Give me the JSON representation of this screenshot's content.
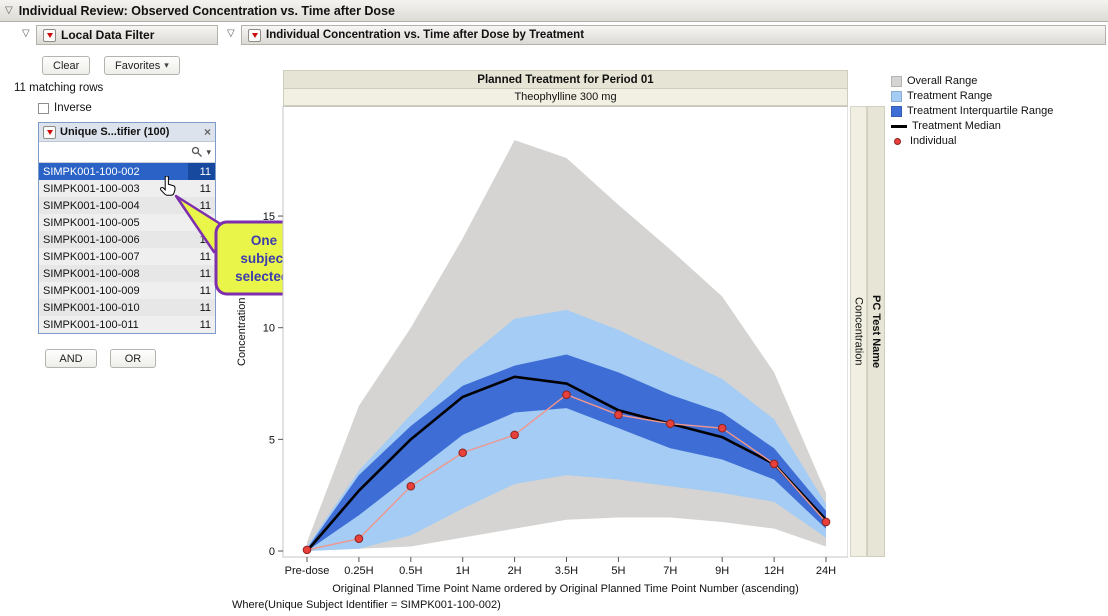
{
  "icons": {
    "disclosure": "▽",
    "caret_down": "▾",
    "close": "×"
  },
  "window": {
    "title": "Individual Review: Observed Concentration vs. Time after Dose"
  },
  "filter_panel": {
    "title": "Local Data Filter",
    "clear_label": "Clear",
    "favorites_label": "Favorites",
    "matching_rows": "11 matching rows",
    "inverse_label": "Inverse",
    "and_label": "AND",
    "or_label": "OR",
    "list": {
      "header": "Unique S...tifier (100)",
      "search_value": "",
      "items": [
        {
          "id": "SIMPK001-100-002",
          "count": "11",
          "selected": true
        },
        {
          "id": "SIMPK001-100-003",
          "count": "11",
          "selected": false
        },
        {
          "id": "SIMPK001-100-004",
          "count": "11",
          "selected": false
        },
        {
          "id": "SIMPK001-100-005",
          "count": "11",
          "selected": false
        },
        {
          "id": "SIMPK001-100-006",
          "count": "11",
          "selected": false
        },
        {
          "id": "SIMPK001-100-007",
          "count": "11",
          "selected": false
        },
        {
          "id": "SIMPK001-100-008",
          "count": "11",
          "selected": false
        },
        {
          "id": "SIMPK001-100-009",
          "count": "11",
          "selected": false
        },
        {
          "id": "SIMPK001-100-010",
          "count": "11",
          "selected": false
        },
        {
          "id": "SIMPK001-100-011",
          "count": "11",
          "selected": false
        }
      ]
    }
  },
  "callout": {
    "line1": "One",
    "line2": "subject",
    "line3": "selected."
  },
  "report_panel": {
    "title": "Individual Concentration vs. Time after Dose by Treatment",
    "header_band1": "Planned Treatment for Period 01",
    "header_band2": "Theophylline 300 mg",
    "right_strip_inner": "Concentration",
    "right_strip_outer": "PC Test Name",
    "where_text": "Where(Unique Subject Identifier = SIMPK001-100-002)"
  },
  "legend": {
    "items": [
      {
        "label": "Overall Range",
        "kind": "box",
        "color": "#d5d4d2"
      },
      {
        "label": "Treatment Range",
        "kind": "box",
        "color": "#a4ccf4"
      },
      {
        "label": "Treatment Interquartile Range",
        "kind": "box",
        "color": "#3f6dd6"
      },
      {
        "label": "Treatment Median",
        "kind": "line",
        "color": "#000000"
      },
      {
        "label": "Individual",
        "kind": "dot",
        "color": "#e8403a"
      }
    ]
  },
  "chart_data": {
    "type": "area",
    "title": "Planned Treatment for Period 01",
    "subtitle": "Theophylline 300 mg",
    "xlabel": "Original Planned Time Point Name ordered by Original Planned Time Point Number (ascending)",
    "ylabel": "Concentration",
    "ylim": [
      0,
      20
    ],
    "yticks": [
      0,
      5,
      10,
      15
    ],
    "x_categories": [
      "Pre-dose",
      "0.25H",
      "0.5H",
      "1H",
      "2H",
      "3.5H",
      "5H",
      "7H",
      "9H",
      "12H",
      "24H"
    ],
    "series": [
      {
        "name": "Overall Range",
        "kind": "band",
        "color": "#d5d4d2",
        "upper": [
          0.4,
          6.5,
          10.0,
          14.0,
          18.4,
          17.6,
          15.5,
          13.5,
          11.4,
          8.0,
          2.6
        ],
        "lower": [
          0,
          0.1,
          0.2,
          0.6,
          1.0,
          1.4,
          1.5,
          1.5,
          1.3,
          1.0,
          0.2
        ]
      },
      {
        "name": "Treatment Range",
        "kind": "band",
        "color": "#a4ccf4",
        "upper": [
          0.2,
          3.6,
          6.1,
          8.5,
          10.4,
          10.8,
          9.9,
          8.8,
          7.7,
          5.9,
          2.1
        ],
        "lower": [
          0,
          0.1,
          0.7,
          1.9,
          3.0,
          3.4,
          3.2,
          2.9,
          2.6,
          2.2,
          0.6
        ]
      },
      {
        "name": "Treatment Interquartile Range",
        "kind": "band",
        "color": "#3f6dd6",
        "upper": [
          0.1,
          3.4,
          5.6,
          7.4,
          8.3,
          8.8,
          8.0,
          7.0,
          6.2,
          4.6,
          1.8
        ],
        "lower": [
          0,
          1.6,
          3.4,
          5.2,
          6.2,
          6.4,
          5.5,
          4.6,
          4.1,
          3.2,
          1.0
        ]
      },
      {
        "name": "Treatment Median",
        "kind": "line",
        "color": "#000000",
        "values": [
          0,
          2.7,
          5.0,
          6.9,
          7.8,
          7.5,
          6.3,
          5.7,
          5.1,
          3.9,
          1.4
        ]
      },
      {
        "name": "Individual",
        "kind": "line+points",
        "line_color": "#f0968d",
        "point_color": "#e8403a",
        "point_edge": "#8c221f",
        "values": [
          0.05,
          0.55,
          2.9,
          4.4,
          5.2,
          7.0,
          6.1,
          5.7,
          5.5,
          3.9,
          1.3
        ]
      }
    ]
  }
}
